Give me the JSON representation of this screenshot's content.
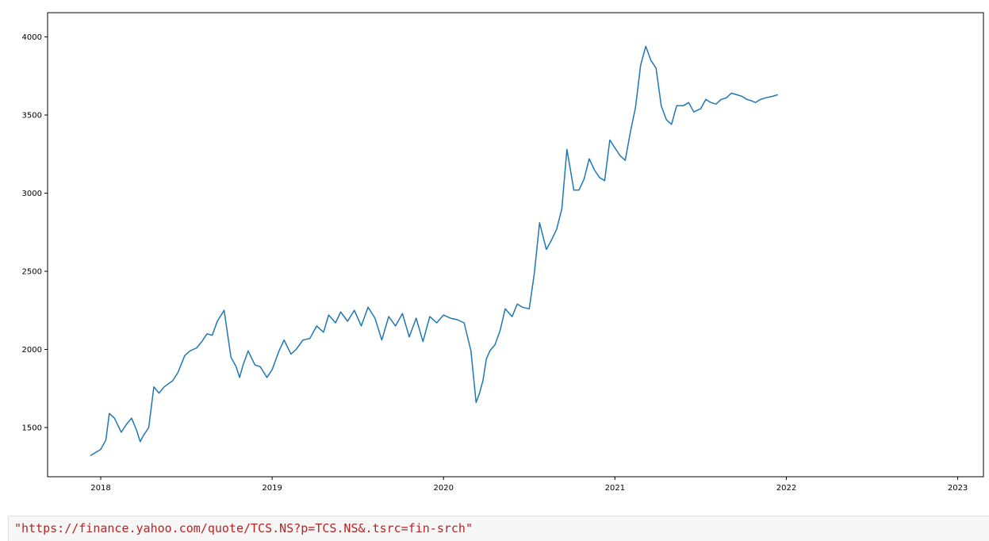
{
  "chart_data": {
    "type": "line",
    "title": "",
    "xlabel": "",
    "ylabel": "",
    "x_ticks": [
      "2018",
      "2019",
      "2020",
      "2021",
      "2022",
      "2023"
    ],
    "y_ticks": [
      "1500",
      "2000",
      "2500",
      "3000",
      "3500",
      "4000"
    ],
    "xlim": [
      2017.69,
      2023.15
    ],
    "ylim": [
      1185,
      4155
    ],
    "grid": false,
    "colors": {
      "train": "#1f77b4",
      "actual": "#ff7f0e",
      "predicted": "#2ca02c"
    },
    "series": [
      {
        "key": "train",
        "x": [
          2017.94,
          2018.0,
          2018.03,
          2018.05,
          2018.08,
          2018.12,
          2018.15,
          2018.18,
          2018.21,
          2018.23,
          2018.25,
          2018.28,
          2018.31,
          2018.34,
          2018.37,
          2018.42,
          2018.45,
          2018.49,
          2018.52,
          2018.56,
          2018.59,
          2018.62,
          2018.65,
          2018.68,
          2018.72,
          2018.74,
          2018.76,
          2018.79,
          2018.81,
          2018.83,
          2018.86,
          2018.9,
          2018.93,
          2018.97,
          2019.0,
          2019.04,
          2019.07,
          2019.11,
          2019.14,
          2019.18,
          2019.22,
          2019.26,
          2019.3,
          2019.33,
          2019.37,
          2019.4,
          2019.44,
          2019.48,
          2019.52,
          2019.56,
          2019.6,
          2019.64,
          2019.68,
          2019.72,
          2019.76,
          2019.8,
          2019.84,
          2019.88,
          2019.92,
          2019.96,
          2020.0,
          2020.04,
          2020.08,
          2020.12,
          2020.16,
          2020.19,
          2020.21,
          2020.23,
          2020.25,
          2020.27,
          2020.3,
          2020.33,
          2020.36,
          2020.4,
          2020.43,
          2020.46,
          2020.5,
          2020.53,
          2020.56,
          2020.6,
          2020.63,
          2020.66,
          2020.69,
          2020.72,
          2020.74,
          2020.76,
          2020.79,
          2020.82,
          2020.85,
          2020.88,
          2020.91,
          2020.94,
          2020.97,
          2021.0,
          2021.03,
          2021.06,
          2021.09,
          2021.12,
          2021.15,
          2021.18,
          2021.21,
          2021.24,
          2021.27,
          2021.3,
          2021.33,
          2021.36,
          2021.4,
          2021.43,
          2021.46,
          2021.5,
          2021.53,
          2021.56,
          2021.59,
          2021.62,
          2021.65,
          2021.68,
          2021.71,
          2021.74,
          2021.77,
          2021.8,
          2021.82,
          2021.85,
          2021.88,
          2021.92,
          2021.95
        ],
        "y": [
          1320,
          1360,
          1420,
          1590,
          1560,
          1470,
          1520,
          1560,
          1480,
          1410,
          1450,
          1500,
          1760,
          1720,
          1760,
          1800,
          1850,
          1960,
          1990,
          2010,
          2050,
          2100,
          2090,
          2180,
          2250,
          2100,
          1950,
          1890,
          1820,
          1900,
          1990,
          1900,
          1890,
          1820,
          1870,
          1990,
          2060,
          1970,
          2000,
          2060,
          2070,
          2150,
          2110,
          2220,
          2170,
          2240,
          2180,
          2250,
          2150,
          2270,
          2200,
          2060,
          2210,
          2150,
          2230,
          2080,
          2200,
          2050,
          2210,
          2170,
          2220,
          2200,
          2190,
          2170,
          1990,
          1660,
          1720,
          1800,
          1940,
          1990,
          2030,
          2120,
          2260,
          2210,
          2290,
          2270,
          2260,
          2490,
          2810,
          2640,
          2700,
          2770,
          2900,
          3280,
          3150,
          3020,
          3020,
          3090,
          3220,
          3150,
          3100,
          3080,
          3340,
          3290,
          3240,
          3210,
          3390,
          3550,
          3820,
          3940,
          3850,
          3800,
          3560,
          3470,
          3440,
          3560,
          3560,
          3580,
          3520,
          3540,
          3600,
          3580,
          3570,
          3600,
          3610,
          3640,
          3630,
          3620,
          3600,
          3590,
          3580,
          3600,
          3610,
          3620,
          3630
        ],
        "x_note": "",
        "y_note": ""
      }
    ]
  },
  "code_cell": {
    "text": "\"https://finance.yahoo.com/quote/TCS.NS?p=TCS.NS&.tsrc=fin-srch\""
  }
}
